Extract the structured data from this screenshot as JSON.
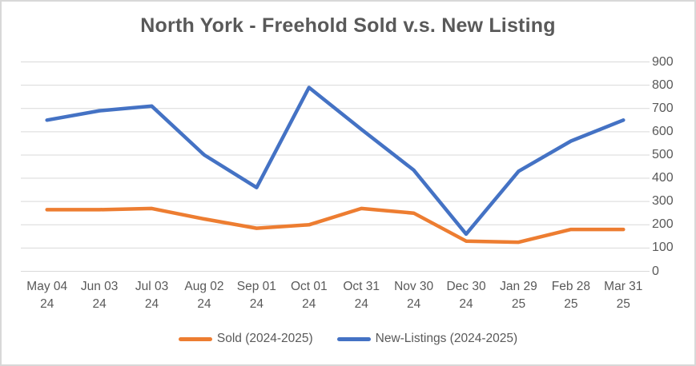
{
  "colors": {
    "background": "#ffffff",
    "border": "#d8d8d8",
    "gridline": "#d9d9d9",
    "text": "#595959",
    "title_text": "#595959",
    "sold_orange": "#ED7D31",
    "new_listings_blue": "#4472C4"
  },
  "chart_data": {
    "type": "line",
    "title": "North York - Freehold Sold v.s. New Listing",
    "xlabel": "",
    "ylabel": "",
    "y_axis_side": "right",
    "grid": true,
    "legend_position": "bottom",
    "ylim": [
      0,
      900
    ],
    "ytick_step": 100,
    "y_tick_labels": [
      "0",
      "100",
      "200",
      "300",
      "400",
      "500",
      "600",
      "700",
      "800",
      "900"
    ],
    "categories": [
      [
        "May 04",
        "24"
      ],
      [
        "Jun 03",
        "24"
      ],
      [
        "Jul 03",
        "24"
      ],
      [
        "Aug 02",
        "24"
      ],
      [
        "Sep 01",
        "24"
      ],
      [
        "Oct 01",
        "24"
      ],
      [
        "Oct 31",
        "24"
      ],
      [
        "Nov 30",
        "24"
      ],
      [
        "Dec 30",
        "24"
      ],
      [
        "Jan 29",
        "25"
      ],
      [
        "Feb 28",
        "25"
      ],
      [
        "Mar 31",
        "25"
      ]
    ],
    "series": [
      {
        "name": "Sold (2024-2025)",
        "color": "#ED7D31",
        "values": [
          265,
          265,
          270,
          225,
          185,
          200,
          270,
          250,
          130,
          125,
          180,
          180
        ]
      },
      {
        "name": "New-Listings (2024-2025)",
        "color": "#4472C4",
        "values": [
          650,
          690,
          710,
          500,
          360,
          790,
          610,
          435,
          160,
          430,
          560,
          650
        ]
      }
    ]
  }
}
